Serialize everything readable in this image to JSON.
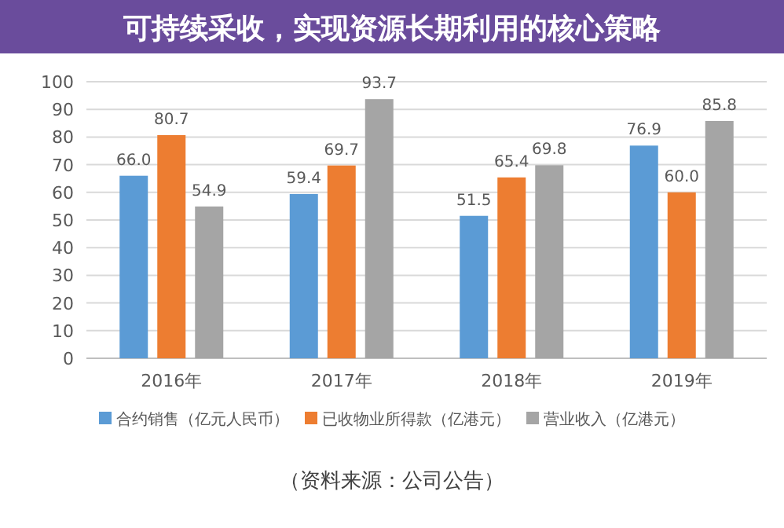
{
  "chart_data": {
    "type": "bar",
    "title": "可持续采收，实现资源长期利用的核心策略",
    "categories": [
      "2016年",
      "2017年",
      "2018年",
      "2019年"
    ],
    "series": [
      {
        "name": "合约销售（亿元人民币）",
        "color": "#5b9bd5",
        "values": [
          66.0,
          59.4,
          51.5,
          76.9
        ],
        "value_labels": [
          "66.0",
          "59.4",
          "51.5",
          "76.9"
        ]
      },
      {
        "name": "已收物业所得款（亿港元）",
        "color": "#ed7d31",
        "values": [
          80.7,
          69.7,
          65.4,
          60.0
        ],
        "value_labels": [
          "80.7",
          "69.7",
          "65.4",
          "60.0"
        ]
      },
      {
        "name": "营业收入（亿港元）",
        "color": "#a5a5a5",
        "values": [
          54.9,
          93.7,
          69.8,
          85.8
        ],
        "value_labels": [
          "54.9",
          "93.7",
          "69.8",
          "85.8"
        ]
      }
    ],
    "ylim": [
      0,
      100
    ],
    "yticks": [
      0,
      10,
      20,
      30,
      40,
      50,
      60,
      70,
      80,
      90,
      100
    ],
    "grid": "y",
    "legend": "bottom",
    "annotations": [
      "（资料来源：公司公告）"
    ]
  }
}
